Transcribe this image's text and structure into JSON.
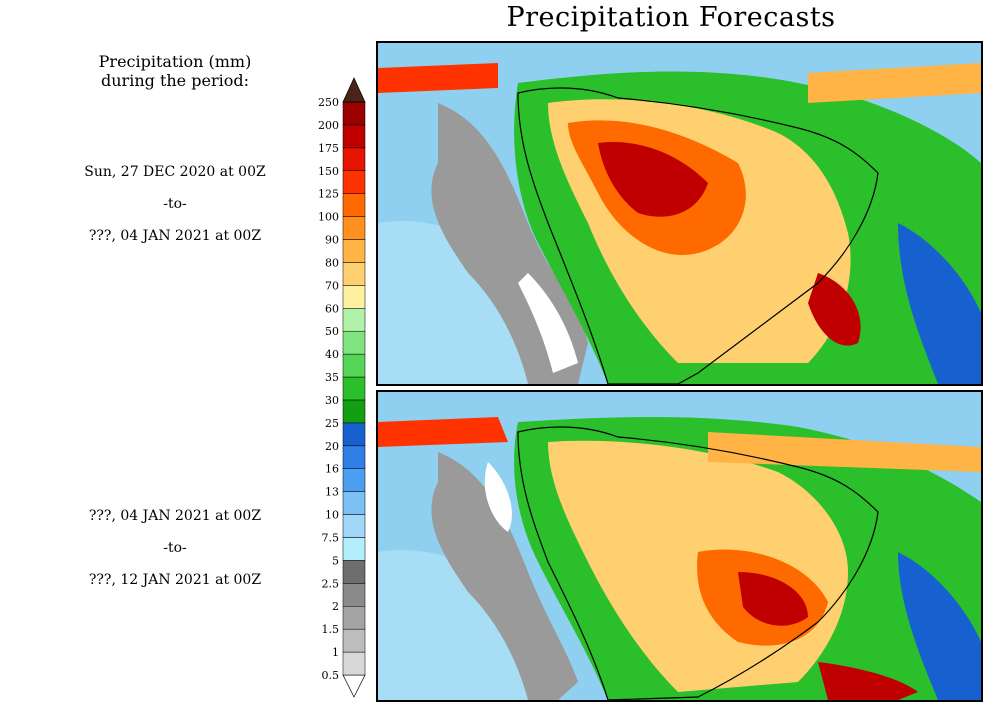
{
  "page_title": "Precipitation Forecasts",
  "legend_heading": "Precipitation (mm)\nduring the period:",
  "panels": [
    {
      "start": "Sun, 27 DEC 2020 at 00Z",
      "separator": "-to-",
      "end": "???, 04 JAN 2021 at 00Z"
    },
    {
      "start": "???, 04 JAN 2021 at 00Z",
      "separator": "-to-",
      "end": "???, 12 JAN 2021 at 00Z"
    }
  ],
  "colorbar": {
    "levels": [
      "0.5",
      "1",
      "1.5",
      "2",
      "2.5",
      "5",
      "7.5",
      "10",
      "13",
      "16",
      "20",
      "25",
      "30",
      "35",
      "40",
      "50",
      "60",
      "70",
      "80",
      "90",
      "100",
      "125",
      "150",
      "175",
      "200",
      "250"
    ],
    "colors": [
      "#ffffff",
      "#d8d8d8",
      "#bdbdbd",
      "#a3a3a3",
      "#8a8a8a",
      "#6e6e6e",
      "#b3eefc",
      "#a1d8f7",
      "#7cc1f5",
      "#4c9ff0",
      "#2f7fe6",
      "#1760cf",
      "#12a012",
      "#2bbf2b",
      "#55d455",
      "#7fe47f",
      "#b1f2a9",
      "#fff0a0",
      "#ffd070",
      "#ffb445",
      "#ff9020",
      "#ff6a00",
      "#ff3300",
      "#e61400",
      "#c00000",
      "#990000",
      "#6e0000",
      "#4a2418"
    ]
  }
}
